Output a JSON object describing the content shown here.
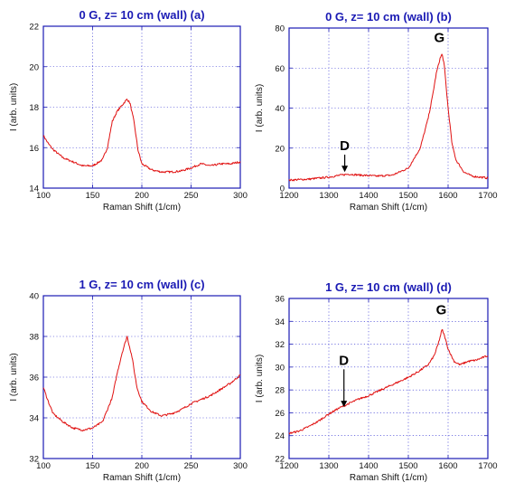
{
  "colors": {
    "series": "#e01010",
    "frame": "#1a1ab4",
    "grid": "#2b2bd0",
    "title": "#1a1ab4"
  },
  "chart_data": [
    {
      "type": "line",
      "title": "0 G, z= 10 cm (wall) (a)",
      "xlabel": "Raman Shift (1/cm)",
      "ylabel": "I (arb. units)",
      "xlim": [
        100,
        300
      ],
      "ylim": [
        14,
        22
      ],
      "xticks": [
        100,
        150,
        200,
        250,
        300
      ],
      "yticks": [
        14,
        16,
        18,
        20,
        22
      ],
      "grid": true,
      "series": [
        {
          "x": [
            100,
            105,
            110,
            120,
            130,
            140,
            150,
            160,
            165,
            170,
            175,
            180,
            185,
            188,
            192,
            196,
            200,
            210,
            220,
            230,
            240,
            250,
            260,
            270,
            280,
            290,
            300
          ],
          "y": [
            16.6,
            16.2,
            15.9,
            15.5,
            15.3,
            15.1,
            15.1,
            15.4,
            16.0,
            17.3,
            17.8,
            18.1,
            18.4,
            18.2,
            17.3,
            15.9,
            15.2,
            14.9,
            14.8,
            14.8,
            14.85,
            15.0,
            15.2,
            15.1,
            15.2,
            15.2,
            15.3
          ]
        }
      ],
      "annotations": []
    },
    {
      "type": "line",
      "title": "0 G, z= 10 cm (wall) (b)",
      "xlabel": "Raman Shift (1/cm)",
      "ylabel": "I (arb. units)",
      "xlim": [
        1200,
        1700
      ],
      "ylim": [
        0,
        80
      ],
      "xticks": [
        1200,
        1300,
        1400,
        1500,
        1600,
        1700
      ],
      "yticks": [
        0,
        20,
        40,
        60,
        80
      ],
      "grid": true,
      "series": [
        {
          "x": [
            1200,
            1250,
            1300,
            1330,
            1350,
            1380,
            1420,
            1460,
            1500,
            1530,
            1550,
            1560,
            1570,
            1580,
            1585,
            1590,
            1600,
            1610,
            1620,
            1640,
            1660,
            1680,
            1700
          ],
          "y": [
            4,
            4.5,
            5.5,
            6.5,
            7,
            6.5,
            6,
            6.5,
            10,
            20,
            35,
            45,
            57,
            65,
            67,
            62,
            40,
            22,
            14,
            8,
            6,
            5.5,
            5
          ]
        }
      ],
      "annotations": [
        {
          "text": "D",
          "x": 1340,
          "y": 19,
          "arrow_to": [
            1340,
            8
          ]
        },
        {
          "text": "G",
          "x": 1578,
          "y": 73
        }
      ]
    },
    {
      "type": "line",
      "title": "1 G, z= 10 cm (wall) (c)",
      "xlabel": "Raman Shift (1/cm)",
      "ylabel": "I (arb. units)",
      "xlim": [
        100,
        300
      ],
      "ylim": [
        32,
        40
      ],
      "xticks": [
        100,
        150,
        200,
        250,
        300
      ],
      "yticks": [
        32,
        34,
        36,
        38,
        40
      ],
      "grid": true,
      "series": [
        {
          "x": [
            100,
            105,
            110,
            120,
            130,
            140,
            150,
            160,
            170,
            175,
            180,
            185,
            190,
            195,
            200,
            210,
            220,
            230,
            240,
            250,
            260,
            270,
            280,
            290,
            300
          ],
          "y": [
            35.5,
            34.8,
            34.2,
            33.8,
            33.5,
            33.4,
            33.5,
            33.8,
            35.0,
            36.2,
            37.2,
            38.0,
            37.0,
            35.5,
            34.8,
            34.3,
            34.1,
            34.2,
            34.4,
            34.7,
            34.9,
            35.1,
            35.4,
            35.7,
            36.1
          ]
        }
      ],
      "annotations": []
    },
    {
      "type": "line",
      "title": "1 G, z= 10 cm (wall) (d)",
      "xlabel": "Raman Shift (1/cm)",
      "ylabel": "I (arb. units)",
      "xlim": [
        1200,
        1700
      ],
      "ylim": [
        22,
        36
      ],
      "xticks": [
        1200,
        1300,
        1400,
        1500,
        1600,
        1700
      ],
      "yticks": [
        22,
        24,
        26,
        28,
        30,
        32,
        34,
        36
      ],
      "grid": true,
      "series": [
        {
          "x": [
            1200,
            1225,
            1250,
            1275,
            1300,
            1325,
            1350,
            1375,
            1400,
            1425,
            1450,
            1475,
            1500,
            1525,
            1550,
            1565,
            1575,
            1585,
            1592,
            1600,
            1615,
            1630,
            1650,
            1670,
            1700
          ],
          "y": [
            24.2,
            24.4,
            24.8,
            25.3,
            25.9,
            26.4,
            26.8,
            27.2,
            27.5,
            27.9,
            28.3,
            28.7,
            29.1,
            29.6,
            30.2,
            31.0,
            32.0,
            33.3,
            32.6,
            31.6,
            30.5,
            30.2,
            30.5,
            30.6,
            31.0
          ]
        }
      ],
      "annotations": [
        {
          "text": "D",
          "x": 1338,
          "y": 30.2,
          "arrow_to": [
            1338,
            26.5
          ]
        },
        {
          "text": "G",
          "x": 1583,
          "y": 34.6
        }
      ]
    }
  ]
}
